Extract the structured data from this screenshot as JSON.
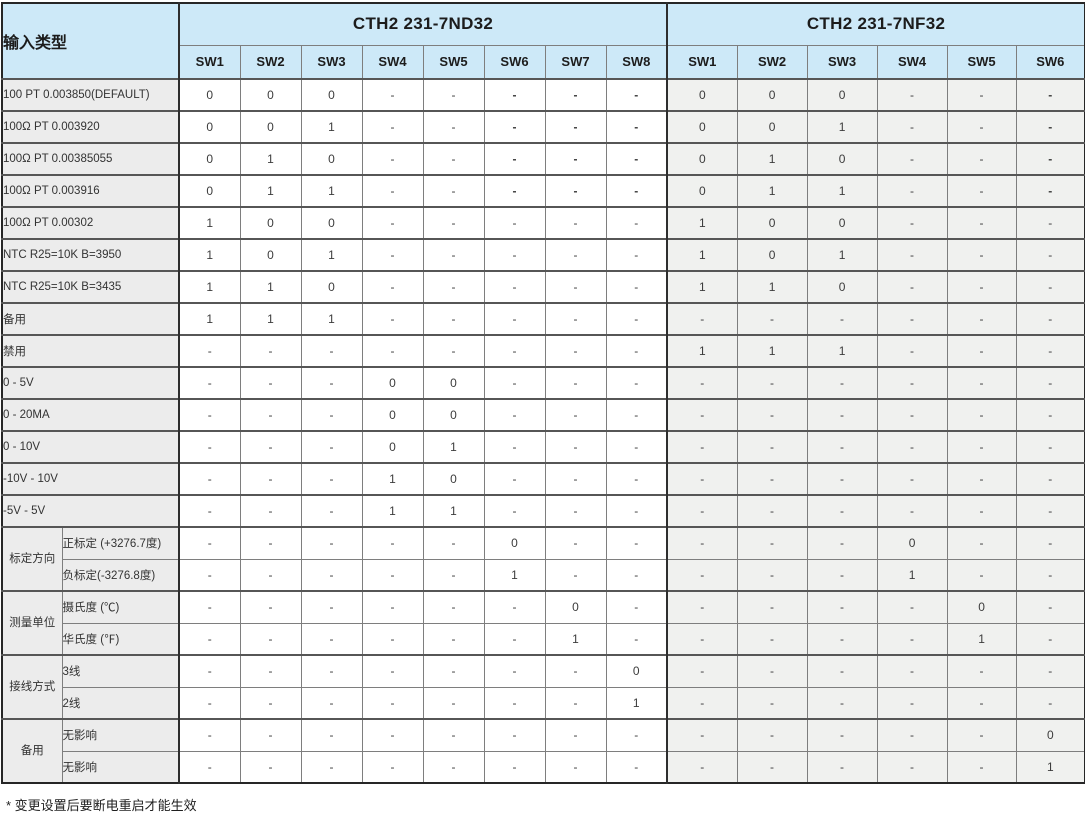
{
  "table": {
    "corner_label": "输入类型",
    "groups": [
      {
        "id": "nd32",
        "title": "CTH2 231-7ND32",
        "switches": [
          "SW1",
          "SW2",
          "SW3",
          "SW4",
          "SW5",
          "SW6",
          "SW7",
          "SW8"
        ]
      },
      {
        "id": "nf32",
        "title": "CTH2 231-7NF32",
        "switches": [
          "SW1",
          "SW2",
          "SW3",
          "SW4",
          "SW5",
          "SW6"
        ]
      }
    ],
    "rows": [
      {
        "label": "100 PT 0.003850(DEFAULT)",
        "nd32": [
          "0",
          "0",
          "0",
          "-",
          "-",
          "-",
          "-",
          "-"
        ],
        "nf32": [
          "0",
          "0",
          "0",
          "-",
          "-",
          "-"
        ],
        "nd32_bold": [
          5,
          6,
          7
        ],
        "nf32_bold": [
          5
        ]
      },
      {
        "label": "100Ω PT 0.003920",
        "nd32": [
          "0",
          "0",
          "1",
          "-",
          "-",
          "-",
          "-",
          "-"
        ],
        "nf32": [
          "0",
          "0",
          "1",
          "-",
          "-",
          "-"
        ],
        "nd32_bold": [
          5,
          6,
          7
        ],
        "nf32_bold": [
          5
        ]
      },
      {
        "label": "100Ω PT 0.00385055",
        "nd32": [
          "0",
          "1",
          "0",
          "-",
          "-",
          "-",
          "-",
          "-"
        ],
        "nf32": [
          "0",
          "1",
          "0",
          "-",
          "-",
          "-"
        ],
        "nd32_bold": [
          5,
          6,
          7
        ],
        "nf32_bold": [
          5
        ]
      },
      {
        "label": "100Ω PT 0.003916",
        "nd32": [
          "0",
          "1",
          "1",
          "-",
          "-",
          "-",
          "-",
          "-"
        ],
        "nf32": [
          "0",
          "1",
          "1",
          "-",
          "-",
          "-"
        ],
        "nd32_bold": [
          5,
          6,
          7
        ],
        "nf32_bold": [
          5
        ]
      },
      {
        "label": "100Ω PT 0.00302",
        "nd32": [
          "1",
          "0",
          "0",
          "-",
          "-",
          "-",
          "-",
          "-"
        ],
        "nf32": [
          "1",
          "0",
          "0",
          "-",
          "-",
          "-"
        ]
      },
      {
        "label": "NTC R25=10K B=3950",
        "nd32": [
          "1",
          "0",
          "1",
          "-",
          "-",
          "-",
          "-",
          "-"
        ],
        "nf32": [
          "1",
          "0",
          "1",
          "-",
          "-",
          "-"
        ]
      },
      {
        "label": "NTC R25=10K B=3435",
        "nd32": [
          "1",
          "1",
          "0",
          "-",
          "-",
          "-",
          "-",
          "-"
        ],
        "nf32": [
          "1",
          "1",
          "0",
          "-",
          "-",
          "-"
        ]
      },
      {
        "label": "备用",
        "nd32": [
          "1",
          "1",
          "1",
          "-",
          "-",
          "-",
          "-",
          "-"
        ],
        "nf32": [
          "-",
          "-",
          "-",
          "-",
          "-",
          "-"
        ]
      },
      {
        "label": "禁用",
        "nd32": [
          "-",
          "-",
          "-",
          "-",
          "-",
          "-",
          "-",
          "-"
        ],
        "nf32": [
          "1",
          "1",
          "1",
          "-",
          "-",
          "-"
        ]
      },
      {
        "label": "0 - 5V",
        "nd32": [
          "-",
          "-",
          "-",
          "0",
          "0",
          "-",
          "-",
          "-"
        ],
        "nf32": [
          "-",
          "-",
          "-",
          "-",
          "-",
          "-"
        ]
      },
      {
        "label": "0 - 20MA",
        "nd32": [
          "-",
          "-",
          "-",
          "0",
          "0",
          "-",
          "-",
          "-"
        ],
        "nf32": [
          "-",
          "-",
          "-",
          "-",
          "-",
          "-"
        ]
      },
      {
        "label": "0 - 10V",
        "nd32": [
          "-",
          "-",
          "-",
          "0",
          "1",
          "-",
          "-",
          "-"
        ],
        "nf32": [
          "-",
          "-",
          "-",
          "-",
          "-",
          "-"
        ]
      },
      {
        "label": "-10V - 10V",
        "nd32": [
          "-",
          "-",
          "-",
          "1",
          "0",
          "-",
          "-",
          "-"
        ],
        "nf32": [
          "-",
          "-",
          "-",
          "-",
          "-",
          "-"
        ]
      },
      {
        "label": "-5V - 5V",
        "nd32": [
          "-",
          "-",
          "-",
          "1",
          "1",
          "-",
          "-",
          "-"
        ],
        "nf32": [
          "-",
          "-",
          "-",
          "-",
          "-",
          "-"
        ]
      },
      {
        "group": "标定方向",
        "label": "正标定 (+3276.7度)",
        "nd32": [
          "-",
          "-",
          "-",
          "-",
          "-",
          "0",
          "-",
          "-"
        ],
        "nf32": [
          "-",
          "-",
          "-",
          "0",
          "-",
          "-"
        ]
      },
      {
        "sub": true,
        "label": "负标定(-3276.8度)",
        "nd32": [
          "-",
          "-",
          "-",
          "-",
          "-",
          "1",
          "-",
          "-"
        ],
        "nf32": [
          "-",
          "-",
          "-",
          "1",
          "-",
          "-"
        ]
      },
      {
        "group": "测量单位",
        "label": "摄氏度 (℃)",
        "nd32": [
          "-",
          "-",
          "-",
          "-",
          "-",
          "-",
          "0",
          "-"
        ],
        "nf32": [
          "-",
          "-",
          "-",
          "-",
          "0",
          "-"
        ]
      },
      {
        "sub": true,
        "label": "华氏度 (℉)",
        "nd32": [
          "-",
          "-",
          "-",
          "-",
          "-",
          "-",
          "1",
          "-"
        ],
        "nf32": [
          "-",
          "-",
          "-",
          "-",
          "1",
          "-"
        ]
      },
      {
        "group": "接线方式",
        "label": "3线",
        "nd32": [
          "-",
          "-",
          "-",
          "-",
          "-",
          "-",
          "-",
          "0"
        ],
        "nf32": [
          "-",
          "-",
          "-",
          "-",
          "-",
          "-"
        ]
      },
      {
        "sub": true,
        "label": "2线",
        "nd32": [
          "-",
          "-",
          "-",
          "-",
          "-",
          "-",
          "-",
          "1"
        ],
        "nf32": [
          "-",
          "-",
          "-",
          "-",
          "-",
          "-"
        ]
      },
      {
        "group": "备用",
        "label": "无影响",
        "nd32": [
          "-",
          "-",
          "-",
          "-",
          "-",
          "-",
          "-",
          "-"
        ],
        "nf32": [
          "-",
          "-",
          "-",
          "-",
          "-",
          "0"
        ]
      },
      {
        "sub": true,
        "label": "无影响",
        "nd32": [
          "-",
          "-",
          "-",
          "-",
          "-",
          "-",
          "-",
          "-"
        ],
        "nf32": [
          "-",
          "-",
          "-",
          "-",
          "-",
          "1"
        ]
      }
    ]
  },
  "colors": {
    "header_blue": "#cde9f8",
    "label_gray": "#ececec",
    "nf32_cell_tint": "#f0f1ef",
    "outer_border": "#262626"
  },
  "footnote": "* 变更设置后要断电重启才能生效"
}
